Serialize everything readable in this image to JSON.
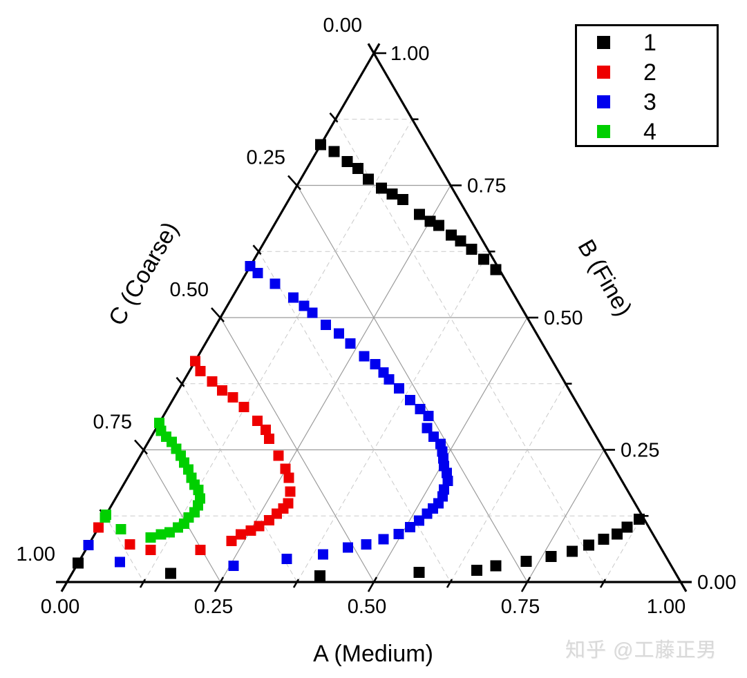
{
  "watermark": {
    "text": "知乎 @工藤正男"
  },
  "legend": {
    "items": [
      {
        "label": "1",
        "color": "#000000"
      },
      {
        "label": "2",
        "color": "#ee0000"
      },
      {
        "label": "3",
        "color": "#0000ee"
      },
      {
        "label": "4",
        "color": "#00cf00"
      }
    ]
  },
  "chart_data": {
    "type": "scatter",
    "subtype": "ternary",
    "marker": "square",
    "grid": {
      "major_interval": 0.25,
      "minor_interval": 0.125,
      "major_style": "solid",
      "minor_style": "dashed",
      "grid_on": true
    },
    "axes": {
      "A": {
        "title": "A (Medium)",
        "range": [
          0,
          1
        ],
        "tick_labels": [
          "0.00",
          "0.25",
          "0.50",
          "0.75",
          "1.00"
        ]
      },
      "B": {
        "title": "B (Fine)",
        "range": [
          0,
          1
        ],
        "tick_labels": [
          "1.00",
          "0.75",
          "0.50",
          "0.25",
          "0.00"
        ]
      },
      "C": {
        "title": "C (Coarse)",
        "range": [
          0,
          1
        ],
        "tick_labels": [
          "0.00",
          "0.25",
          "0.50",
          "0.75",
          "1.00"
        ]
      }
    },
    "legend_position": "top-right",
    "series": [
      {
        "name": "1",
        "color": "#000000",
        "marker_size": 16,
        "points_abc": [
          [
            0.0,
            0.827,
            0.173
          ],
          [
            0.028,
            0.814,
            0.158
          ],
          [
            0.059,
            0.795,
            0.146
          ],
          [
            0.083,
            0.782,
            0.135
          ],
          [
            0.11,
            0.762,
            0.128
          ],
          [
            0.14,
            0.745,
            0.115
          ],
          [
            0.163,
            0.734,
            0.103
          ],
          [
            0.186,
            0.723,
            0.091
          ],
          [
            0.227,
            0.695,
            0.078
          ],
          [
            0.251,
            0.682,
            0.067
          ],
          [
            0.269,
            0.674,
            0.057
          ],
          [
            0.298,
            0.656,
            0.046
          ],
          [
            0.319,
            0.645,
            0.036
          ],
          [
            0.345,
            0.629,
            0.026
          ],
          [
            0.374,
            0.61,
            0.016
          ],
          [
            0.403,
            0.591,
            0.006
          ],
          [
            0.0,
            0.036,
            0.964
          ],
          [
            0.161,
            0.016,
            0.823
          ],
          [
            0.406,
            0.012,
            0.582
          ],
          [
            0.565,
            0.018,
            0.417
          ],
          [
            0.657,
            0.022,
            0.321
          ],
          [
            0.683,
            0.031,
            0.286
          ],
          [
            0.729,
            0.039,
            0.232
          ],
          [
            0.765,
            0.048,
            0.187
          ],
          [
            0.794,
            0.058,
            0.148
          ],
          [
            0.815,
            0.07,
            0.115
          ],
          [
            0.834,
            0.081,
            0.085
          ],
          [
            0.851,
            0.091,
            0.058
          ],
          [
            0.861,
            0.104,
            0.035
          ],
          [
            0.873,
            0.119,
            0.008
          ]
        ]
      },
      {
        "name": "2",
        "color": "#ee0000",
        "marker_size": 15,
        "points_abc": [
          [
            0.0,
            0.418,
            0.582
          ],
          [
            0.018,
            0.399,
            0.583
          ],
          [
            0.047,
            0.379,
            0.574
          ],
          [
            0.072,
            0.362,
            0.566
          ],
          [
            0.096,
            0.349,
            0.555
          ],
          [
            0.123,
            0.331,
            0.546
          ],
          [
            0.158,
            0.305,
            0.537
          ],
          [
            0.18,
            0.288,
            0.532
          ],
          [
            0.194,
            0.271,
            0.535
          ],
          [
            0.225,
            0.239,
            0.536
          ],
          [
            0.249,
            0.214,
            0.537
          ],
          [
            0.263,
            0.197,
            0.54
          ],
          [
            0.278,
            0.171,
            0.551
          ],
          [
            0.286,
            0.149,
            0.565
          ],
          [
            0.283,
            0.139,
            0.578
          ],
          [
            0.277,
            0.129,
            0.594
          ],
          [
            0.271,
            0.117,
            0.612
          ],
          [
            0.26,
            0.106,
            0.634
          ],
          [
            0.251,
            0.097,
            0.652
          ],
          [
            0.238,
            0.09,
            0.672
          ],
          [
            0.229,
            0.078,
            0.693
          ],
          [
            0.187,
            0.061,
            0.752
          ],
          [
            0.106,
            0.061,
            0.833
          ],
          [
            0.067,
            0.071,
            0.862
          ],
          [
            0.0,
            0.103,
            0.897
          ]
        ]
      },
      {
        "name": "3",
        "color": "#0000ee",
        "marker_size": 15,
        "points_abc": [
          [
            0.0,
            0.597,
            0.403
          ],
          [
            0.019,
            0.584,
            0.397
          ],
          [
            0.057,
            0.564,
            0.379
          ],
          [
            0.1,
            0.538,
            0.362
          ],
          [
            0.125,
            0.522,
            0.353
          ],
          [
            0.145,
            0.509,
            0.346
          ],
          [
            0.179,
            0.486,
            0.335
          ],
          [
            0.208,
            0.47,
            0.322
          ],
          [
            0.236,
            0.451,
            0.313
          ],
          [
            0.271,
            0.427,
            0.302
          ],
          [
            0.296,
            0.412,
            0.292
          ],
          [
            0.318,
            0.396,
            0.286
          ],
          [
            0.333,
            0.383,
            0.284
          ],
          [
            0.358,
            0.366,
            0.276
          ],
          [
            0.387,
            0.344,
            0.269
          ],
          [
            0.412,
            0.327,
            0.261
          ],
          [
            0.432,
            0.314,
            0.254
          ],
          [
            0.441,
            0.291,
            0.268
          ],
          [
            0.46,
            0.275,
            0.265
          ],
          [
            0.478,
            0.261,
            0.261
          ],
          [
            0.488,
            0.247,
            0.265
          ],
          [
            0.496,
            0.234,
            0.27
          ],
          [
            0.505,
            0.219,
            0.276
          ],
          [
            0.516,
            0.206,
            0.278
          ],
          [
            0.525,
            0.191,
            0.284
          ],
          [
            0.527,
            0.175,
            0.298
          ],
          [
            0.531,
            0.162,
            0.307
          ],
          [
            0.531,
            0.149,
            0.32
          ],
          [
            0.527,
            0.139,
            0.334
          ],
          [
            0.522,
            0.129,
            0.349
          ],
          [
            0.516,
            0.116,
            0.368
          ],
          [
            0.507,
            0.104,
            0.389
          ],
          [
            0.495,
            0.091,
            0.414
          ],
          [
            0.475,
            0.081,
            0.444
          ],
          [
            0.452,
            0.071,
            0.477
          ],
          [
            0.425,
            0.065,
            0.51
          ],
          [
            0.391,
            0.052,
            0.557
          ],
          [
            0.336,
            0.044,
            0.62
          ],
          [
            0.256,
            0.031,
            0.713
          ],
          [
            0.067,
            0.038,
            0.895
          ],
          [
            0.0,
            0.07,
            0.93
          ]
        ]
      },
      {
        "name": "4",
        "color": "#00cf00",
        "marker_size": 15,
        "points_abc": [
          [
            0.0,
            0.301,
            0.699
          ],
          [
            0.01,
            0.286,
            0.704
          ],
          [
            0.024,
            0.275,
            0.701
          ],
          [
            0.038,
            0.265,
            0.697
          ],
          [
            0.052,
            0.252,
            0.696
          ],
          [
            0.066,
            0.239,
            0.695
          ],
          [
            0.078,
            0.226,
            0.696
          ],
          [
            0.091,
            0.213,
            0.696
          ],
          [
            0.104,
            0.197,
            0.699
          ],
          [
            0.116,
            0.184,
            0.7
          ],
          [
            0.127,
            0.174,
            0.699
          ],
          [
            0.138,
            0.158,
            0.704
          ],
          [
            0.141,
            0.145,
            0.714
          ],
          [
            0.142,
            0.132,
            0.726
          ],
          [
            0.137,
            0.122,
            0.741
          ],
          [
            0.136,
            0.11,
            0.754
          ],
          [
            0.129,
            0.103,
            0.768
          ],
          [
            0.12,
            0.094,
            0.786
          ],
          [
            0.108,
            0.09,
            0.802
          ],
          [
            0.094,
            0.084,
            0.822
          ],
          [
            0.038,
            0.1,
            0.862
          ],
          [
            0.001,
            0.122,
            0.877
          ],
          [
            0.0,
            0.127,
            0.873
          ]
        ]
      }
    ]
  }
}
